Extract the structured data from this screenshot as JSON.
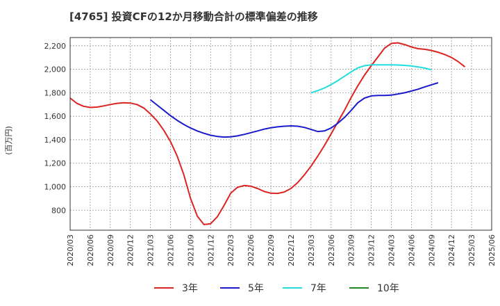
{
  "chart_data": {
    "type": "line",
    "title": "[4765]  投資CFの12か月移動合計の標準偏差の推移",
    "ylabel": "(百万円)",
    "xlabel": "",
    "ylim": [
      630,
      2270
    ],
    "yticks": [
      800,
      1000,
      1200,
      1400,
      1600,
      1800,
      2000,
      2200
    ],
    "ytick_labels": [
      "800",
      "1,000",
      "1,200",
      "1,400",
      "1,600",
      "1,800",
      "2,000",
      "2,200"
    ],
    "xticks": [
      "2020/03",
      "2020/06",
      "2020/09",
      "2020/12",
      "2021/03",
      "2021/06",
      "2021/09",
      "2021/12",
      "2022/03",
      "2022/06",
      "2022/09",
      "2022/12",
      "2023/03",
      "2023/06",
      "2023/09",
      "2023/12",
      "2024/03",
      "2024/06",
      "2024/09",
      "2024/12",
      "2025/03",
      "2025/06"
    ],
    "grid": true,
    "legend_position": "bottom",
    "series": [
      {
        "name": "3年",
        "color": "#dd2222",
        "points": [
          [
            "2020/03",
            1755
          ],
          [
            "2020/04",
            1710
          ],
          [
            "2020/05",
            1685
          ],
          [
            "2020/06",
            1675
          ],
          [
            "2020/07",
            1678
          ],
          [
            "2020/08",
            1688
          ],
          [
            "2020/09",
            1700
          ],
          [
            "2020/10",
            1710
          ],
          [
            "2020/11",
            1715
          ],
          [
            "2020/12",
            1712
          ],
          [
            "2021/01",
            1700
          ],
          [
            "2021/02",
            1670
          ],
          [
            "2021/03",
            1620
          ],
          [
            "2021/04",
            1560
          ],
          [
            "2021/05",
            1480
          ],
          [
            "2021/06",
            1385
          ],
          [
            "2021/07",
            1260
          ],
          [
            "2021/08",
            1100
          ],
          [
            "2021/09",
            900
          ],
          [
            "2021/10",
            750
          ],
          [
            "2021/11",
            678
          ],
          [
            "2021/12",
            685
          ],
          [
            "2022/01",
            745
          ],
          [
            "2022/02",
            840
          ],
          [
            "2022/03",
            945
          ],
          [
            "2022/04",
            995
          ],
          [
            "2022/05",
            1010
          ],
          [
            "2022/06",
            1005
          ],
          [
            "2022/07",
            985
          ],
          [
            "2022/08",
            960
          ],
          [
            "2022/09",
            945
          ],
          [
            "2022/10",
            943
          ],
          [
            "2022/11",
            955
          ],
          [
            "2022/12",
            985
          ],
          [
            "2023/01",
            1035
          ],
          [
            "2023/02",
            1100
          ],
          [
            "2023/03",
            1175
          ],
          [
            "2023/04",
            1260
          ],
          [
            "2023/05",
            1350
          ],
          [
            "2023/06",
            1450
          ],
          [
            "2023/07",
            1550
          ],
          [
            "2023/08",
            1650
          ],
          [
            "2023/09",
            1760
          ],
          [
            "2023/10",
            1860
          ],
          [
            "2023/11",
            1950
          ],
          [
            "2023/12",
            2030
          ],
          [
            "2024/01",
            2105
          ],
          [
            "2024/02",
            2180
          ],
          [
            "2024/03",
            2220
          ],
          [
            "2024/04",
            2225
          ],
          [
            "2024/05",
            2210
          ],
          [
            "2024/06",
            2190
          ],
          [
            "2024/07",
            2175
          ],
          [
            "2024/08",
            2170
          ],
          [
            "2024/09",
            2160
          ],
          [
            "2024/10",
            2145
          ],
          [
            "2024/11",
            2125
          ],
          [
            "2024/12",
            2100
          ],
          [
            "2025/01",
            2065
          ],
          [
            "2025/02",
            2020
          ]
        ]
      },
      {
        "name": "5年",
        "color": "#1a1acc",
        "points": [
          [
            "2021/03",
            1740
          ],
          [
            "2021/04",
            1695
          ],
          [
            "2021/05",
            1650
          ],
          [
            "2021/06",
            1605
          ],
          [
            "2021/07",
            1565
          ],
          [
            "2021/08",
            1530
          ],
          [
            "2021/09",
            1500
          ],
          [
            "2021/10",
            1475
          ],
          [
            "2021/11",
            1455
          ],
          [
            "2021/12",
            1438
          ],
          [
            "2022/01",
            1428
          ],
          [
            "2022/02",
            1423
          ],
          [
            "2022/03",
            1425
          ],
          [
            "2022/04",
            1433
          ],
          [
            "2022/05",
            1445
          ],
          [
            "2022/06",
            1460
          ],
          [
            "2022/07",
            1475
          ],
          [
            "2022/08",
            1490
          ],
          [
            "2022/09",
            1502
          ],
          [
            "2022/10",
            1510
          ],
          [
            "2022/11",
            1515
          ],
          [
            "2022/12",
            1518
          ],
          [
            "2023/01",
            1515
          ],
          [
            "2023/02",
            1505
          ],
          [
            "2023/03",
            1488
          ],
          [
            "2023/04",
            1470
          ],
          [
            "2023/05",
            1475
          ],
          [
            "2023/06",
            1500
          ],
          [
            "2023/07",
            1540
          ],
          [
            "2023/08",
            1590
          ],
          [
            "2023/09",
            1650
          ],
          [
            "2023/10",
            1715
          ],
          [
            "2023/11",
            1755
          ],
          [
            "2023/12",
            1773
          ],
          [
            "2024/01",
            1777
          ],
          [
            "2024/02",
            1777
          ],
          [
            "2024/03",
            1780
          ],
          [
            "2024/04",
            1790
          ],
          [
            "2024/05",
            1800
          ],
          [
            "2024/06",
            1815
          ],
          [
            "2024/07",
            1830
          ],
          [
            "2024/08",
            1850
          ],
          [
            "2024/09",
            1868
          ],
          [
            "2024/10",
            1885
          ]
        ]
      },
      {
        "name": "7年",
        "color": "#22dddd",
        "points": [
          [
            "2023/03",
            1800
          ],
          [
            "2023/04",
            1818
          ],
          [
            "2023/05",
            1840
          ],
          [
            "2023/06",
            1870
          ],
          [
            "2023/07",
            1903
          ],
          [
            "2023/08",
            1940
          ],
          [
            "2023/09",
            1978
          ],
          [
            "2023/10",
            2012
          ],
          [
            "2023/11",
            2030
          ],
          [
            "2023/12",
            2038
          ],
          [
            "2024/01",
            2038
          ],
          [
            "2024/02",
            2038
          ],
          [
            "2024/03",
            2038
          ],
          [
            "2024/04",
            2036
          ],
          [
            "2024/05",
            2033
          ],
          [
            "2024/06",
            2028
          ],
          [
            "2024/07",
            2020
          ],
          [
            "2024/08",
            2010
          ],
          [
            "2024/09",
            1995
          ]
        ]
      },
      {
        "name": "10年",
        "color": "#228822",
        "points": []
      }
    ]
  }
}
